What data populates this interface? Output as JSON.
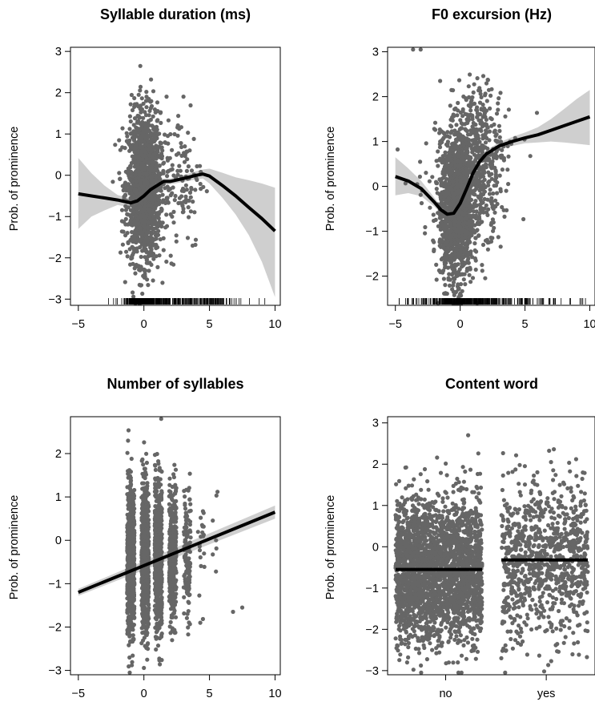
{
  "colors": {
    "points": "#666666",
    "band": "#cfcfcf",
    "line": "#000000"
  },
  "chart_data": [
    {
      "type": "scatter",
      "title": "Syllable duration (ms)",
      "ylabel": "Prob. of prominence",
      "xlabel": "",
      "xlim": [
        -5.6,
        10.4
      ],
      "ylim": [
        -3.15,
        3.1
      ],
      "xticks": [
        -5,
        0,
        5,
        10
      ],
      "yticks": [
        -3,
        -2,
        -1,
        0,
        1,
        2,
        3
      ],
      "grid": false,
      "rug": true,
      "cloud": [
        {
          "x_center": 0,
          "x_spread": 0.9,
          "y_center": -0.3,
          "y_spread": 0.9,
          "n": 1600
        },
        {
          "x_center": 2.6,
          "x_spread": 1.4,
          "y_center": 0.0,
          "y_spread": 0.9,
          "n": 140
        }
      ],
      "fit": {
        "x": [
          -5,
          -4,
          -3,
          -2,
          -1,
          -0.5,
          0,
          0.5,
          1,
          1.5,
          2,
          3,
          4,
          4.5,
          5,
          6,
          7,
          8,
          9,
          10
        ],
        "y": [
          -0.45,
          -0.5,
          -0.55,
          -0.6,
          -0.67,
          -0.62,
          -0.5,
          -0.35,
          -0.25,
          -0.15,
          -0.15,
          -0.08,
          0.0,
          0.03,
          -0.02,
          -0.25,
          -0.5,
          -0.78,
          -1.05,
          -1.35
        ]
      },
      "band": {
        "lower": [
          -1.3,
          -1.0,
          -0.85,
          -0.72,
          -0.78,
          -0.72,
          -0.58,
          -0.42,
          -0.32,
          -0.23,
          -0.22,
          -0.16,
          -0.1,
          -0.08,
          -0.2,
          -0.55,
          -0.95,
          -1.45,
          -2.1,
          -2.95
        ],
        "upper": [
          0.42,
          0.05,
          -0.25,
          -0.48,
          -0.56,
          -0.52,
          -0.42,
          -0.28,
          -0.18,
          -0.08,
          -0.08,
          0.0,
          0.1,
          0.14,
          0.16,
          0.06,
          -0.05,
          -0.12,
          -0.2,
          -0.3
        ]
      }
    },
    {
      "type": "scatter",
      "title": "F0 excursion (Hz)",
      "ylabel": "Prob. of prominence",
      "xlabel": "",
      "xlim": [
        -5.6,
        10.4
      ],
      "ylim": [
        -2.65,
        3.1
      ],
      "xticks": [
        -5,
        0,
        5,
        10
      ],
      "yticks": [
        -2,
        -1,
        0,
        1,
        2,
        3
      ],
      "grid": false,
      "rug": true,
      "cloud": [
        {
          "x_center": -0.3,
          "x_spread": 0.9,
          "y_center": -0.5,
          "y_spread": 0.8,
          "n": 1500
        },
        {
          "x_center": 1.5,
          "x_spread": 1.3,
          "y_center": 0.6,
          "y_spread": 0.8,
          "n": 450
        },
        {
          "x_center": 0,
          "x_spread": 3.5,
          "y_center": 0.3,
          "y_spread": 1.0,
          "n": 120
        }
      ],
      "fit": {
        "x": [
          -5,
          -4,
          -3,
          -2,
          -1.5,
          -1,
          -0.5,
          0,
          0.5,
          1,
          1.5,
          2,
          3,
          4,
          5,
          6,
          7,
          8,
          9,
          10
        ],
        "y": [
          0.22,
          0.12,
          -0.05,
          -0.35,
          -0.52,
          -0.62,
          -0.6,
          -0.38,
          -0.05,
          0.3,
          0.55,
          0.72,
          0.9,
          1.0,
          1.08,
          1.15,
          1.25,
          1.35,
          1.45,
          1.55
        ]
      },
      "band": {
        "lower": [
          -0.2,
          -0.15,
          -0.22,
          -0.45,
          -0.6,
          -0.7,
          -0.68,
          -0.46,
          -0.13,
          0.22,
          0.47,
          0.64,
          0.82,
          0.9,
          0.96,
          0.98,
          1.0,
          0.98,
          0.95,
          0.92
        ]
      },
      "band_upper": [
        0.65,
        0.4,
        0.12,
        -0.25,
        -0.44,
        -0.54,
        -0.52,
        -0.3,
        0.03,
        0.38,
        0.63,
        0.8,
        0.98,
        1.1,
        1.2,
        1.32,
        1.5,
        1.72,
        1.95,
        2.15
      ]
    },
    {
      "type": "scatter",
      "title": "Number of syllables",
      "ylabel": "Prob. of prominence",
      "xlabel": "",
      "xlim": [
        -5.6,
        10.4
      ],
      "ylim": [
        -3.1,
        2.85
      ],
      "xticks": [
        -5,
        0,
        5,
        10
      ],
      "yticks": [
        -3,
        -2,
        -1,
        0,
        1,
        2
      ],
      "grid": false,
      "rug": false,
      "columns": [
        {
          "x": -1.0,
          "n": 750,
          "y_spread": 0.85
        },
        {
          "x": 0.1,
          "n": 750,
          "y_spread": 0.85
        },
        {
          "x": 1.1,
          "n": 600,
          "y_spread": 0.85
        },
        {
          "x": 2.2,
          "n": 350,
          "y_spread": 0.8
        },
        {
          "x": 3.3,
          "n": 120,
          "y_spread": 0.75
        },
        {
          "x": 4.4,
          "n": 20,
          "y_spread": 0.6
        },
        {
          "x": 5.5,
          "n": 6,
          "y_spread": 0.5
        }
      ],
      "extra_points": [
        [
          7.5,
          -1.55
        ],
        [
          6.8,
          -1.65
        ],
        [
          4.3,
          -1.9
        ],
        [
          5.5,
          0.0
        ]
      ],
      "fit": {
        "x": [
          -5,
          10
        ],
        "y": [
          -1.2,
          0.65
        ]
      },
      "band": {
        "lower": [
          -1.28,
          0.5
        ],
        "upper": [
          -1.12,
          0.8
        ]
      }
    },
    {
      "type": "scatter",
      "title": "Content word",
      "ylabel": "Prob. of prominence",
      "xlabel": "",
      "categories": [
        "no",
        "yes"
      ],
      "ylim": [
        -3.1,
        3.15
      ],
      "yticks": [
        -3,
        -2,
        -1,
        0,
        1,
        2,
        3
      ],
      "grid": false,
      "rug": false,
      "groups": [
        {
          "category": "no",
          "n": 2600,
          "y_center": -0.55,
          "y_spread": 0.85
        },
        {
          "category": "yes",
          "n": 950,
          "y_center": -0.32,
          "y_spread": 0.95
        }
      ],
      "fit_levels": [
        -0.55,
        -0.32
      ]
    }
  ]
}
